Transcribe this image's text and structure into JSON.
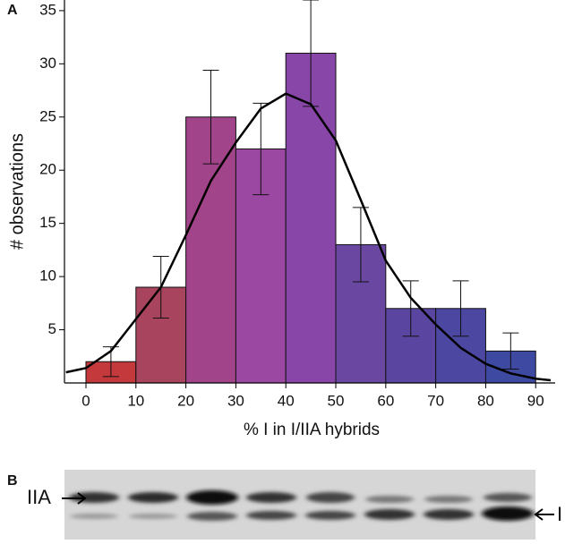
{
  "chart_data": {
    "type": "histogram",
    "panel_label": "A",
    "x_label": "% I in I/IIA hybrids",
    "y_label": "# observations",
    "bins": [
      0,
      10,
      20,
      30,
      40,
      50,
      60,
      70,
      80,
      90
    ],
    "counts": [
      2,
      9,
      25,
      22,
      31,
      13,
      7,
      7,
      3
    ],
    "errors": [
      1.4,
      2.9,
      4.4,
      4.3,
      5,
      3.5,
      2.6,
      2.6,
      1.7
    ],
    "colors": [
      "#c4393c",
      "#a9445e",
      "#a2448a",
      "#9a48a2",
      "#8846a8",
      "#6a48a2",
      "#5a46a0",
      "#4c48a2",
      "#3e4aa2"
    ],
    "curve": {
      "x": [
        -4,
        0,
        5,
        10,
        15,
        20,
        25,
        30,
        35,
        40,
        45,
        50,
        55,
        60,
        65,
        70,
        75,
        80,
        85,
        90,
        93
      ],
      "y": [
        1.0,
        1.4,
        3,
        6,
        9,
        13.9,
        19,
        22.6,
        25.8,
        27.2,
        26.2,
        22.8,
        17.2,
        11.5,
        8,
        5.5,
        3.3,
        1.8,
        0.9,
        0.4,
        0.25
      ],
      "color": "#000000"
    },
    "xlim": [
      -4.3,
      93.9
    ],
    "xticks": [
      0,
      10,
      20,
      30,
      40,
      50,
      60,
      70,
      80,
      90
    ],
    "ylim": [
      0,
      36
    ],
    "yticks": [
      5,
      10,
      15,
      20,
      25,
      30,
      35
    ]
  },
  "gel": {
    "panel_label": "B",
    "upper_band_label": "IIA",
    "lower_band_label": "I"
  }
}
